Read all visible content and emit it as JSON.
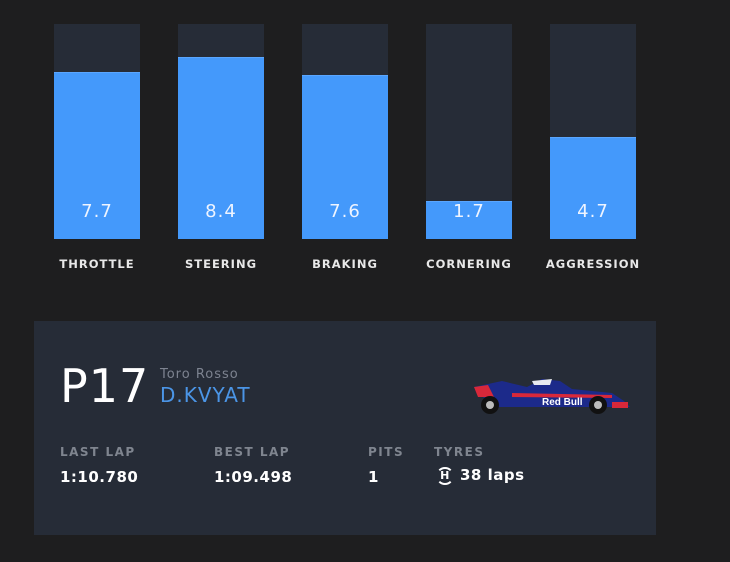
{
  "chart_data": {
    "type": "bar",
    "categories": [
      "THROTTLE",
      "STEERING",
      "BRAKING",
      "CORNERING",
      "AGGRESSION"
    ],
    "values": [
      7.7,
      8.4,
      7.6,
      1.7,
      4.7
    ],
    "value_labels": [
      "7.7",
      "8.4",
      "7.6",
      "1.7",
      "4.7"
    ],
    "ylim": [
      0,
      10
    ],
    "grid": false,
    "colors": {
      "fill": "#4499fb",
      "track": "#262c37"
    }
  },
  "driver_card": {
    "position": "P17",
    "team": "Toro Rosso",
    "driver": "D.KVYAT",
    "stats": {
      "last_lap_label": "LAST LAP",
      "last_lap": "1:10.780",
      "best_lap_label": "BEST LAP",
      "best_lap": "1:09.498",
      "pits_label": "PITS",
      "pits": "1",
      "tyres_label": "TYRES",
      "tyre_compound": "H",
      "tyre_laps": "38 laps"
    },
    "car_sponsor_text": "Red Bull"
  }
}
